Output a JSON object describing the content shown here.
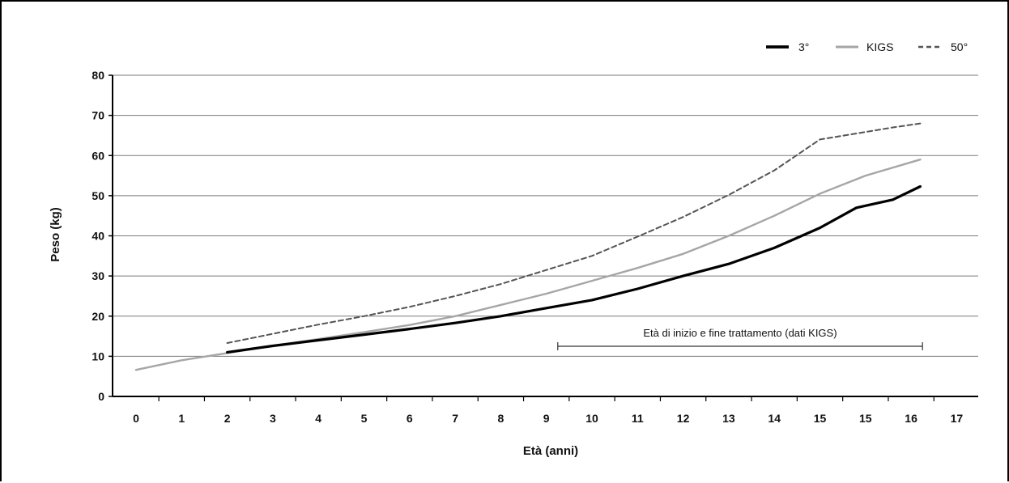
{
  "chart_data": {
    "type": "line",
    "title": "",
    "xlabel": "Età (anni)",
    "ylabel": "Peso (kg)",
    "ylim": [
      0,
      80
    ],
    "yticks": [
      "0",
      "10",
      "20",
      "30",
      "40",
      "50",
      "60",
      "70",
      "80"
    ],
    "x_tick_labels": [
      "0",
      "1",
      "2",
      "3",
      "4",
      "5",
      "6",
      "7",
      "8",
      "9",
      "10",
      "11",
      "12",
      "13",
      "14",
      "15",
      "15",
      "16",
      "17"
    ],
    "grid": "horizontal",
    "legend_position": "top-right",
    "series": [
      {
        "name": "3°",
        "style": "solid-thick",
        "color": "#000000",
        "x": [
          2,
          3,
          4,
          5,
          6,
          7,
          8,
          9,
          10,
          11,
          12,
          13,
          14,
          15,
          15.8,
          16.6,
          17.2
        ],
        "y": [
          11,
          12.6,
          14,
          15.4,
          16.8,
          18.3,
          20,
          22,
          24,
          26.8,
          30,
          33,
          37,
          42,
          47,
          49,
          52.3
        ]
      },
      {
        "name": "KIGS",
        "style": "solid",
        "color": "#a6a6a6",
        "x": [
          0,
          1,
          2,
          3,
          4,
          5,
          6,
          7,
          8,
          9,
          10,
          11,
          12,
          13,
          14,
          15,
          16,
          17.2
        ],
        "y": [
          6.6,
          9,
          10.8,
          12.6,
          14.3,
          16,
          17.8,
          20,
          22.8,
          25.6,
          28.8,
          32,
          35.5,
          40,
          45,
          50.5,
          55,
          59
        ]
      },
      {
        "name": "50°",
        "style": "dashed",
        "color": "#555555",
        "x": [
          2,
          3,
          4,
          5,
          6,
          7,
          8,
          9,
          10,
          11,
          12,
          13,
          14,
          15,
          15.8,
          16.6,
          17.2
        ],
        "y": [
          13.3,
          15.6,
          17.9,
          20,
          22.3,
          25,
          28,
          31.5,
          35,
          39.8,
          44.7,
          50.2,
          56.3,
          64,
          65.5,
          67,
          68
        ]
      }
    ],
    "annotations": [
      {
        "text": "Età di inizio e fine trattamento (dati KIGS)",
        "range_x": [
          9.25,
          17.25
        ],
        "y": 12.5
      }
    ]
  }
}
